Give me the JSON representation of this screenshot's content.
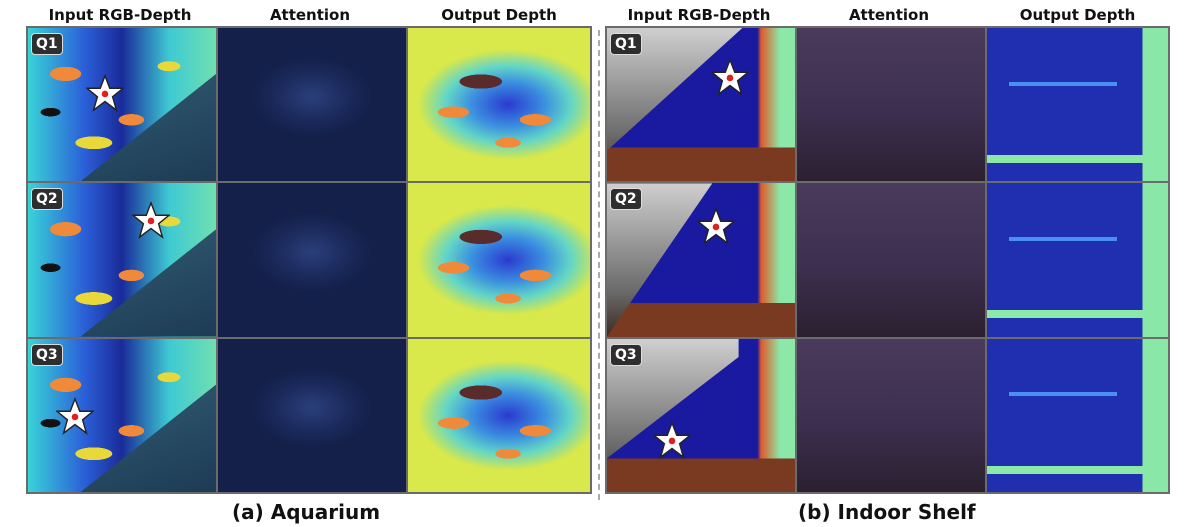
{
  "left_panel": {
    "columns": [
      "Input RGB-Depth",
      "Attention",
      "Output Depth"
    ],
    "rows": [
      "Q1",
      "Q2",
      "Q3"
    ],
    "caption": "(a) Aquarium"
  },
  "right_panel": {
    "columns": [
      "Input RGB-Depth",
      "Attention",
      "Output Depth"
    ],
    "rows": [
      "Q1",
      "Q2",
      "Q3"
    ],
    "caption": "(b) Indoor Shelf"
  },
  "colors": {
    "star_fill": "#ffffff",
    "star_dot": "#e02020",
    "tag_bg": "#2e2e2e"
  }
}
